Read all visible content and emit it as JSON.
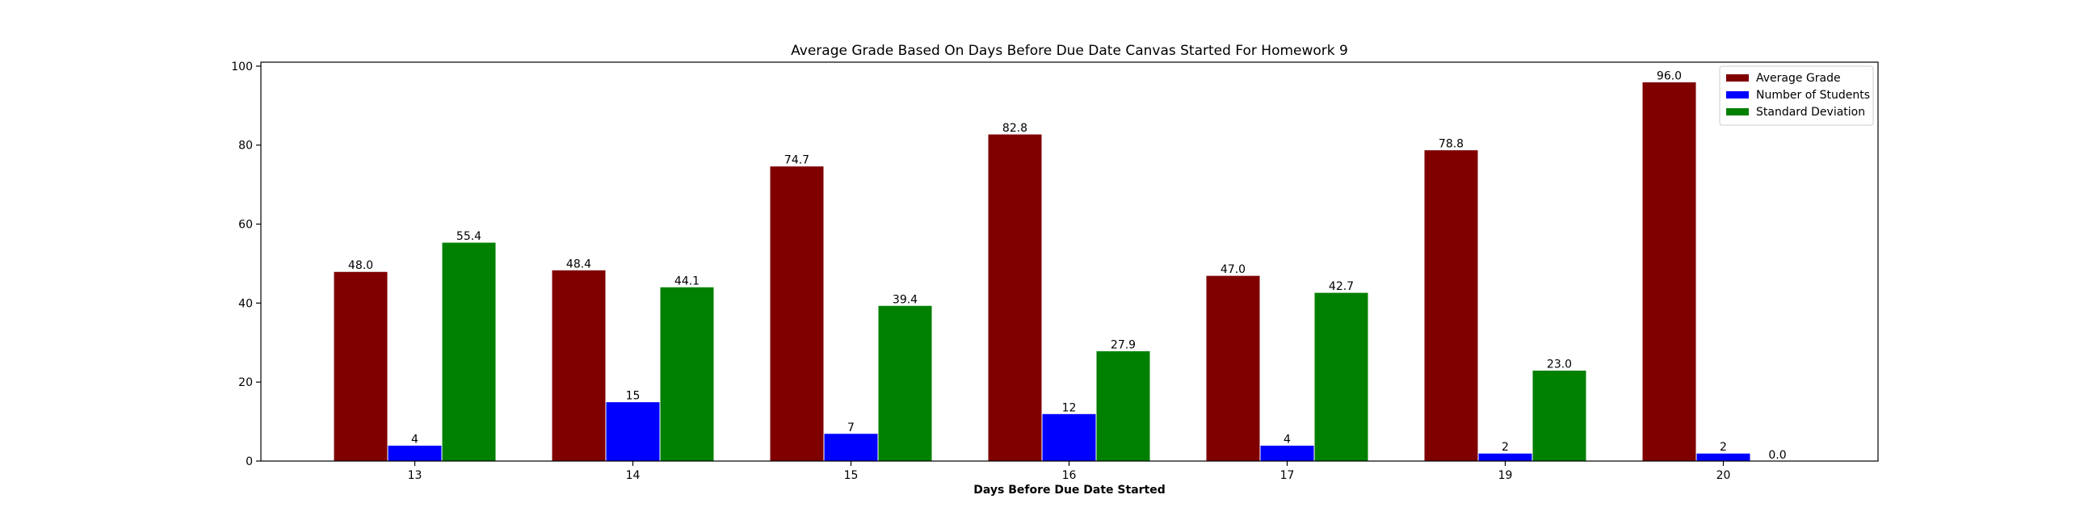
{
  "chart_data": {
    "type": "bar",
    "title": "Average Grade Based On Days Before Due Date Canvas Started For Homework 9",
    "xlabel": "Days Before Due Date Started",
    "ylabel": "",
    "categories": [
      "13",
      "14",
      "15",
      "16",
      "17",
      "19",
      "20"
    ],
    "series": [
      {
        "name": "Average Grade",
        "color": "#800000",
        "values": [
          48.0,
          48.4,
          74.7,
          82.8,
          47.0,
          78.8,
          96.0
        ],
        "labels": [
          "48.0",
          "48.4",
          "74.7",
          "82.8",
          "47.0",
          "78.8",
          "96.0"
        ]
      },
      {
        "name": "Number of Students",
        "color": "#0000ff",
        "values": [
          4,
          15,
          7,
          12,
          4,
          2,
          2
        ],
        "labels": [
          "4",
          "15",
          "7",
          "12",
          "4",
          "2",
          "2"
        ]
      },
      {
        "name": "Standard Deviation",
        "color": "#008000",
        "values": [
          55.4,
          44.1,
          39.4,
          27.9,
          42.7,
          23.0,
          0.0
        ],
        "labels": [
          "55.4",
          "44.1",
          "39.4",
          "27.9",
          "42.7",
          "23.0",
          "0.0"
        ]
      }
    ],
    "ylim": [
      0,
      101
    ],
    "yticks": [
      0,
      20,
      40,
      60,
      80,
      100
    ],
    "ytick_labels": [
      "0",
      "20",
      "40",
      "60",
      "80",
      "100"
    ],
    "grid": false,
    "legend_position": "top-right"
  }
}
